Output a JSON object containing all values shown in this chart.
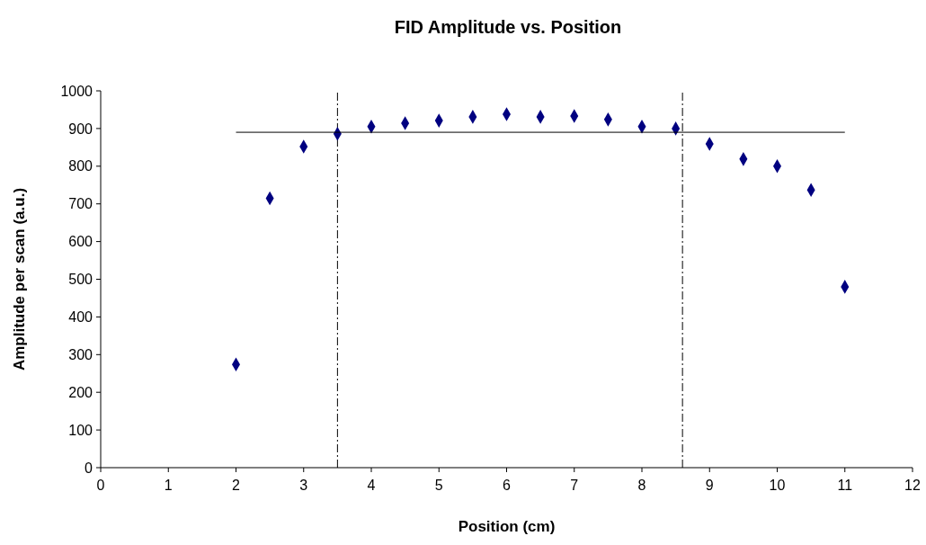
{
  "chart_data": {
    "type": "scatter",
    "title": "FID Amplitude vs. Position",
    "xlabel": "Position (cm)",
    "ylabel": "Amplitude per scan (a.u.)",
    "xlim": [
      0,
      12
    ],
    "xticks": [
      0,
      1,
      2,
      3,
      4,
      5,
      6,
      7,
      8,
      9,
      10,
      11,
      12
    ],
    "ylim": [
      0,
      1000
    ],
    "yticks": [
      0,
      100,
      200,
      300,
      400,
      500,
      600,
      700,
      800,
      900,
      1000
    ],
    "grid": false,
    "marker": "diamond",
    "series": [
      {
        "color": "#000080",
        "x": [
          2,
          2.5,
          3,
          3.5,
          4,
          4.5,
          5,
          5.5,
          6,
          6.5,
          7,
          7.5,
          8,
          8.5,
          9,
          9.5,
          10,
          10.5,
          11
        ],
        "values": [
          274,
          715,
          852,
          886,
          905,
          914,
          921,
          931,
          938,
          931,
          933,
          924,
          905,
          900,
          859,
          819,
          800,
          737,
          480
        ]
      },
      {
        "type": "line",
        "color": "#000000",
        "marker": "none",
        "x": [
          2,
          11
        ],
        "values": [
          890,
          890
        ]
      }
    ],
    "ref_lines": [
      {
        "axis": "x",
        "value": 3.5,
        "color": "#000000",
        "line_style": "dashed"
      },
      {
        "axis": "x",
        "value": 8.6,
        "color": "#000000",
        "line_style": "dashed"
      }
    ]
  }
}
